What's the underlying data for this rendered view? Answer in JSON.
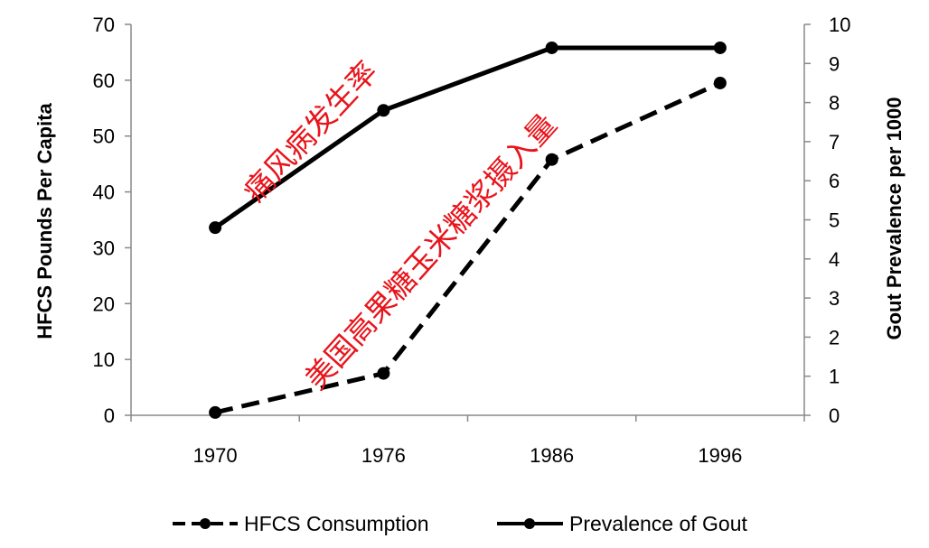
{
  "chart_data": {
    "type": "line",
    "categories": [
      "1970",
      "1976",
      "1986",
      "1996"
    ],
    "series": [
      {
        "name": "HFCS Consumption",
        "axis": "left",
        "style": "dashed",
        "values": [
          0.5,
          7.5,
          45.8,
          59.5
        ]
      },
      {
        "name": "Prevalence of Gout",
        "axis": "right",
        "style": "solid",
        "values": [
          4.8,
          7.8,
          9.4,
          9.4
        ]
      }
    ],
    "ylabel": "HFCS Pounds Per Capita",
    "ylim": [
      0,
      70
    ],
    "yticks": [
      "0",
      "10",
      "20",
      "30",
      "40",
      "50",
      "60",
      "70"
    ],
    "y2label": "Gout Prevalence per 1000",
    "y2lim": [
      0,
      10
    ],
    "y2ticks": [
      "0",
      "1",
      "2",
      "3",
      "4",
      "5",
      "6",
      "7",
      "8",
      "9",
      "10"
    ],
    "annotations": [
      {
        "text": "痛风病发生率",
        "color": "#e8141b"
      },
      {
        "text": "美国高果糖玉米糖浆摄入量",
        "color": "#e8141b"
      }
    ],
    "legend_position": "bottom",
    "grid": false
  }
}
